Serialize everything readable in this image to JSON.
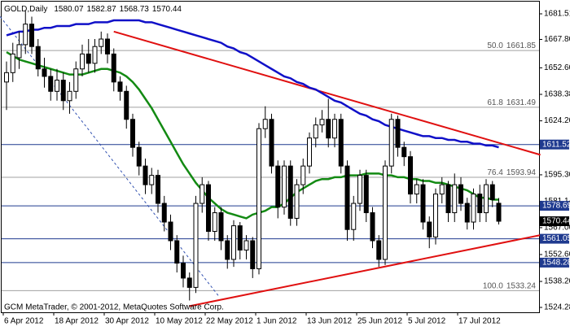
{
  "chart_data": {
    "type": "candlestick",
    "symbol": "GOLD,Daily",
    "footer": "GCM MetaTrader, © 2001-2012, MetaQuotes Software Corp.",
    "ylim": [
      1521.67,
      1688.04
    ],
    "yticks": [
      1681.51,
      {
        "value": 1667.8,
        "label": "1667.80"
      },
      {
        "value": 1652.6,
        "label": "1652.60"
      },
      1638.38,
      {
        "value": 1624.2,
        "label": "1624.20"
      },
      {
        "value": 1595.3,
        "label": "1595.30"
      },
      1581.14,
      {
        "value": 1567,
        "label": "1567.00"
      },
      {
        "value": 1552.6,
        "label": "1552.60"
      },
      {
        "value": 1538.2,
        "label": "1538.20"
      },
      1524.28
    ],
    "xticks": [
      {
        "value": 0,
        "label": "6 Apr 2012"
      },
      {
        "value": 8,
        "label": "18 Apr 2012"
      },
      {
        "value": 16,
        "label": "30 Apr 2012"
      },
      {
        "value": 24,
        "label": "10 May 2012"
      },
      {
        "value": 32,
        "label": "22 May 2012"
      },
      {
        "value": 40,
        "label": "1 Jun 2012"
      },
      {
        "value": 48,
        "label": "13 Jun 2012"
      },
      {
        "value": 56,
        "label": "25 Jun 2012"
      },
      {
        "value": 64,
        "label": "5 Jul 2012"
      },
      {
        "value": 72,
        "label": "17 Jul 2012"
      }
    ],
    "candles": {
      "bull_color": "#ffffff",
      "bear_color": "#000000",
      "open": [
        1645,
        1650,
        1658,
        1665,
        1676,
        1664,
        1652,
        1648,
        1640,
        1646,
        1635,
        1640,
        1652,
        1660,
        1655,
        1664,
        1668,
        1660,
        1645,
        1640,
        1625,
        1610,
        1600,
        1590,
        1595,
        1580,
        1570,
        1560,
        1548,
        1540,
        1535,
        1580,
        1590,
        1565,
        1575,
        1560,
        1550,
        1568,
        1555,
        1560,
        1545,
        1620,
        1625,
        1600,
        1578,
        1600,
        1572,
        1590,
        1600,
        1615,
        1622,
        1625,
        1615,
        1625,
        1600,
        1566,
        1580,
        1595,
        1575,
        1560,
        1550,
        1600,
        1625,
        1610,
        1605,
        1585,
        1590,
        1570,
        1562,
        1585,
        1590,
        1575,
        1590,
        1580,
        1570,
        1585,
        1575,
        1590,
        1580.07
      ],
      "high": [
        1656,
        1666,
        1672,
        1683,
        1680,
        1668,
        1658,
        1652,
        1652,
        1650,
        1645,
        1656,
        1665,
        1668,
        1668,
        1672,
        1671,
        1663,
        1648,
        1643,
        1628,
        1613,
        1604,
        1599,
        1598,
        1584,
        1574,
        1563,
        1552,
        1543,
        1584,
        1594,
        1592,
        1578,
        1578,
        1563,
        1571,
        1570,
        1563,
        1562,
        1623,
        1632,
        1628,
        1603,
        1603,
        1603,
        1593,
        1604,
        1618,
        1626,
        1630,
        1636,
        1628,
        1628,
        1603,
        1584,
        1598,
        1598,
        1578,
        1563,
        1603,
        1628,
        1627,
        1613,
        1608,
        1593,
        1593,
        1573,
        1588,
        1594,
        1592,
        1596,
        1594,
        1583,
        1588,
        1590,
        1593,
        1592,
        1582.87
      ],
      "low": [
        1630,
        1645,
        1652,
        1660,
        1660,
        1648,
        1642,
        1635,
        1635,
        1630,
        1628,
        1636,
        1648,
        1650,
        1650,
        1660,
        1655,
        1640,
        1635,
        1620,
        1605,
        1595,
        1585,
        1585,
        1575,
        1565,
        1555,
        1543,
        1535,
        1528,
        1532,
        1575,
        1560,
        1560,
        1555,
        1545,
        1546,
        1550,
        1550,
        1540,
        1542,
        1615,
        1596,
        1572,
        1574,
        1568,
        1568,
        1585,
        1596,
        1610,
        1618,
        1610,
        1610,
        1596,
        1560,
        1560,
        1576,
        1570,
        1556,
        1546,
        1547,
        1596,
        1605,
        1600,
        1580,
        1580,
        1566,
        1556,
        1558,
        1580,
        1570,
        1570,
        1576,
        1566,
        1566,
        1570,
        1570,
        1578,
        1568.73
      ],
      "close": [
        1650,
        1660,
        1665,
        1676,
        1664,
        1652,
        1648,
        1640,
        1646,
        1635,
        1640,
        1652,
        1660,
        1655,
        1664,
        1668,
        1660,
        1645,
        1640,
        1625,
        1610,
        1600,
        1590,
        1595,
        1580,
        1570,
        1560,
        1548,
        1540,
        1535,
        1580,
        1590,
        1565,
        1575,
        1560,
        1550,
        1568,
        1555,
        1560,
        1545,
        1620,
        1625,
        1600,
        1578,
        1600,
        1572,
        1590,
        1600,
        1615,
        1622,
        1625,
        1615,
        1625,
        1600,
        1566,
        1580,
        1595,
        1575,
        1560,
        1550,
        1600,
        1625,
        1610,
        1605,
        1585,
        1590,
        1570,
        1562,
        1585,
        1590,
        1575,
        1590,
        1580,
        1570,
        1585,
        1575,
        1590,
        1582,
        1570.44
      ]
    },
    "series": [
      {
        "color": "#1010c8",
        "values": [
          1670,
          1671,
          1672,
          1672,
          1673,
          1673,
          1674,
          1674,
          1675,
          1675,
          1675,
          1676,
          1676,
          1676,
          1677,
          1677,
          1677,
          1678,
          1678,
          1678,
          1678,
          1678,
          1677,
          1677,
          1676,
          1675,
          1674,
          1673,
          1672,
          1671,
          1670,
          1669,
          1668,
          1667,
          1666,
          1664,
          1663,
          1661,
          1660,
          1658,
          1656,
          1654,
          1652,
          1650,
          1648,
          1647,
          1645,
          1644,
          1642,
          1641,
          1639,
          1637,
          1635,
          1634,
          1632,
          1630,
          1628,
          1627,
          1625,
          1624,
          1622,
          1621,
          1620,
          1619,
          1618,
          1617,
          1616,
          1616,
          1615,
          1615,
          1614,
          1614,
          1613,
          1613,
          1612,
          1612,
          1611,
          1611,
          1610
        ]
      },
      {
        "color": "#138a13",
        "values": [
          1661,
          1659,
          1657,
          1656,
          1655,
          1654,
          1653,
          1652,
          1651,
          1650,
          1649,
          1649,
          1649,
          1650,
          1651,
          1652,
          1652,
          1651,
          1650,
          1648,
          1645,
          1641,
          1636,
          1631,
          1625,
          1619,
          1613,
          1607,
          1601,
          1596,
          1591,
          1587,
          1583,
          1580,
          1577,
          1575,
          1574,
          1573,
          1572,
          1574,
          1575,
          1576,
          1578,
          1578,
          1580,
          1583,
          1586,
          1588,
          1590,
          1592,
          1593,
          1593,
          1594,
          1594,
          1595,
          1595,
          1595,
          1596,
          1596,
          1596,
          1595,
          1595,
          1594,
          1594,
          1593,
          1593,
          1592,
          1592,
          1591,
          1591,
          1590,
          1589,
          1588,
          1587,
          1585,
          1583,
          1583,
          1582,
          1582
        ]
      }
    ],
    "trendlines": [
      {
        "color": "#e01010",
        "dashed": false,
        "points": [
          [
            17,
            1672
          ],
          [
            84.6,
            1606
          ]
        ]
      },
      {
        "color": "#e01010",
        "dashed": false,
        "points": [
          [
            29,
            1525
          ],
          [
            84.6,
            1563
          ]
        ]
      },
      {
        "color": "#3050b0",
        "dashed": true,
        "points": [
          [
            -1,
            1680
          ],
          [
            33.7,
            1530
          ]
        ]
      }
    ],
    "fibo": {
      "color": "#a0a0a0",
      "levels": [
        {
          "ratio": "50.0",
          "value": 1661.85
        },
        {
          "ratio": "61.8",
          "value": 1631.49
        },
        {
          "ratio": "76.4",
          "value": 1593.94
        },
        {
          "ratio": "100.0",
          "value": 1533.24
        }
      ]
    },
    "hlines": {
      "color": "#1f3a8f",
      "values": [
        1611.52,
        1578.69,
        1561.05,
        1548.28
      ]
    }
  }
}
